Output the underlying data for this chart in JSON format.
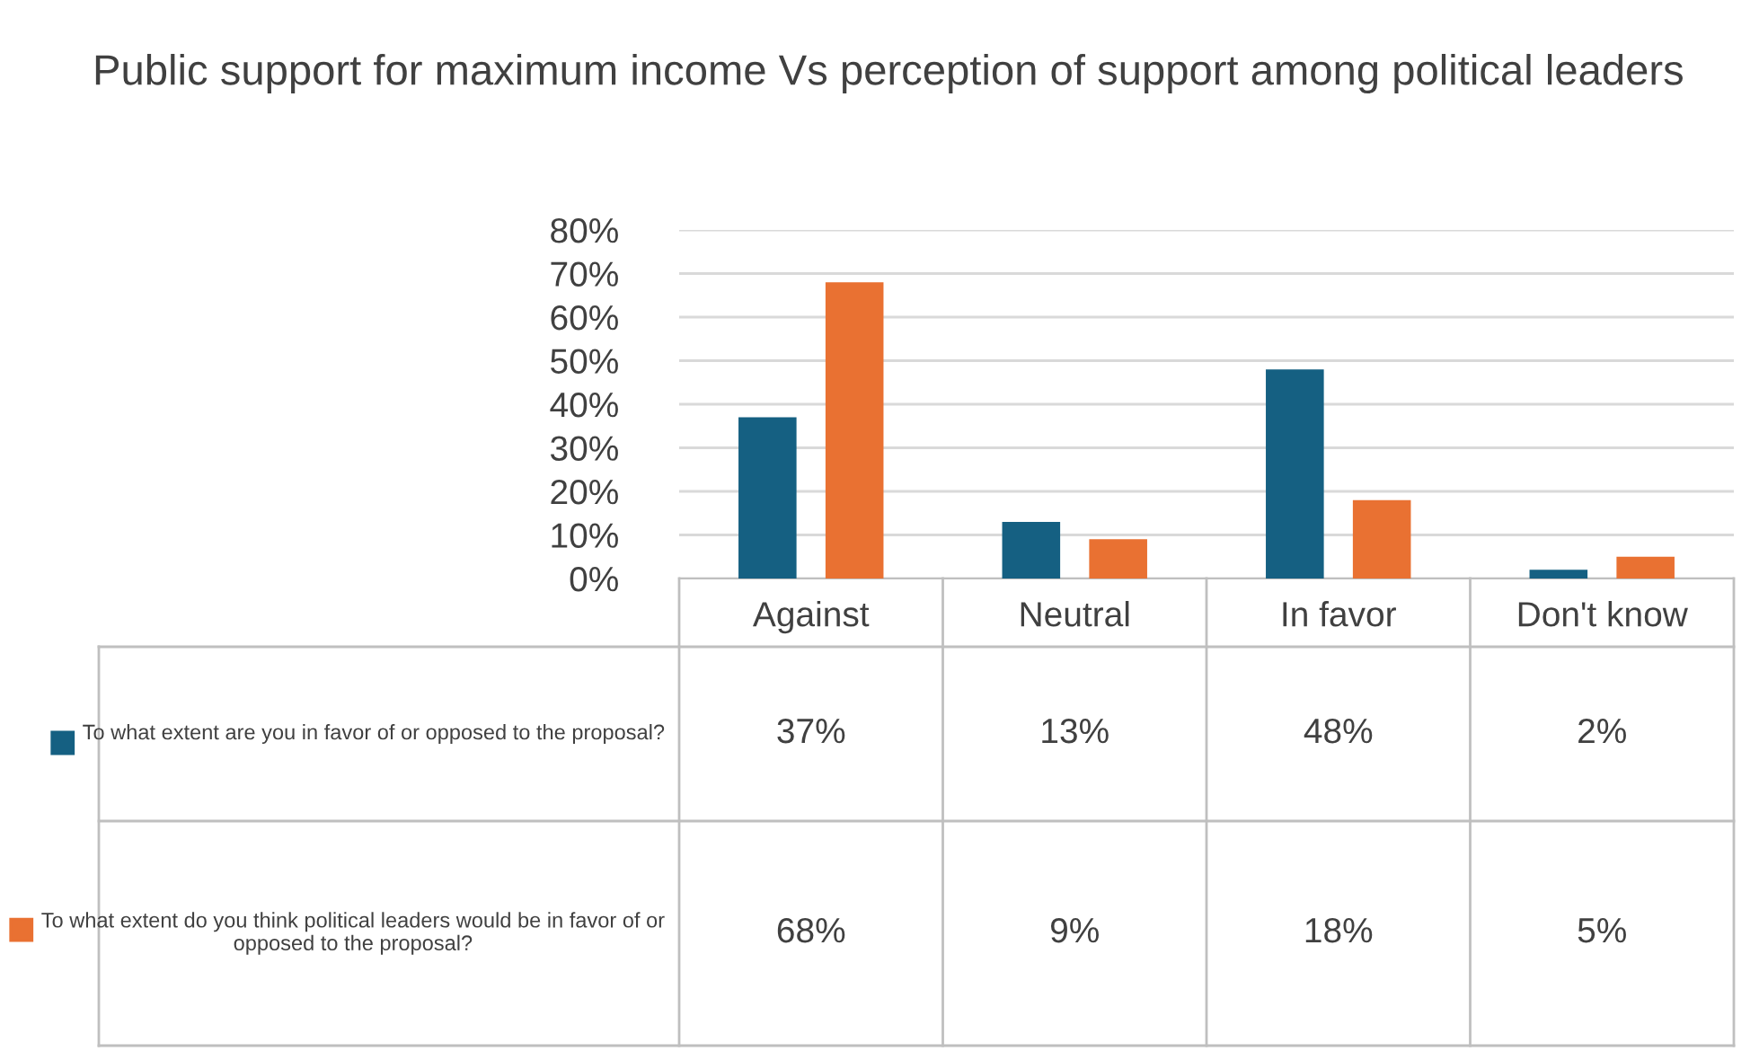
{
  "chart_data": {
    "type": "bar",
    "title": "Public support for maximum income Vs perception of support among political leaders",
    "categories": [
      "Against",
      "Neutral",
      "In favor",
      "Don't know"
    ],
    "series": [
      {
        "name": "To what extent are you in favor of or opposed to the proposal?",
        "color": "#156082",
        "values": [
          37,
          13,
          48,
          2
        ],
        "value_labels": [
          "37%",
          "13%",
          "48%",
          "2%"
        ]
      },
      {
        "name": "To what extent do you think political leaders would be in favor of or opposed to the proposal?",
        "color": "#e97132",
        "values": [
          68,
          9,
          18,
          5
        ],
        "value_labels": [
          "68%",
          "9%",
          "18%",
          "5%"
        ]
      }
    ],
    "ylim": [
      0,
      80
    ],
    "yticks": [
      {
        "value": 0,
        "label": "0%"
      },
      {
        "value": 10,
        "label": "10%"
      },
      {
        "value": 20,
        "label": "20%"
      },
      {
        "value": 30,
        "label": "30%"
      },
      {
        "value": 40,
        "label": "40%"
      },
      {
        "value": 50,
        "label": "50%"
      },
      {
        "value": 60,
        "label": "60%"
      },
      {
        "value": 70,
        "label": "70%"
      },
      {
        "value": 80,
        "label": "80%"
      }
    ],
    "grid": "y",
    "legend": "bottom"
  }
}
